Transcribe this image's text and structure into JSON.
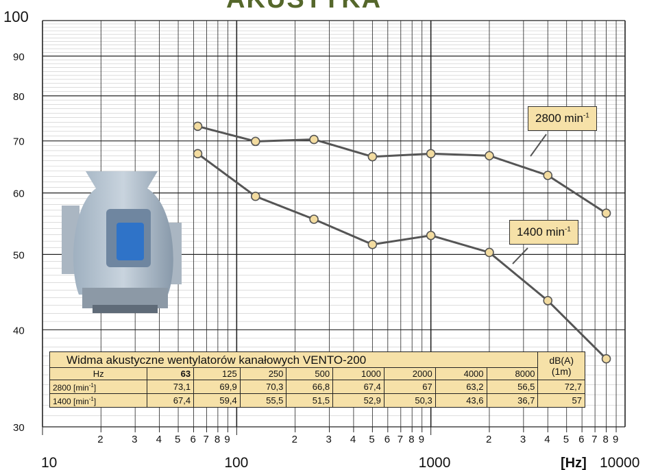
{
  "header": {
    "title": "AKUSTYKA"
  },
  "chart_data": {
    "type": "line",
    "x_scale": "log",
    "y_scale": "log",
    "xlim": [
      10,
      10000
    ],
    "ylim": [
      30,
      100
    ],
    "x_major_labels": [
      "10",
      "100",
      "1000",
      "10000"
    ],
    "x_minor_labels": [
      "2",
      "3",
      "4",
      "5",
      "6",
      "7",
      "8",
      "9"
    ],
    "x_unit_label": "[Hz]",
    "y_tick_labels": [
      "30",
      "40",
      "50",
      "60",
      "70",
      "80",
      "90",
      "100"
    ],
    "grid": true,
    "series": [
      {
        "name": "2800 min",
        "name_sup": "-1",
        "x": [
          63,
          125,
          250,
          500,
          1000,
          2000,
          4000,
          8000
        ],
        "y": [
          73.1,
          69.9,
          70.3,
          66.8,
          67.4,
          67,
          63.2,
          56.5
        ]
      },
      {
        "name": "1400 min",
        "name_sup": "-1",
        "x": [
          63,
          125,
          250,
          500,
          1000,
          2000,
          4000,
          8000
        ],
        "y": [
          67.4,
          59.4,
          55.5,
          51.5,
          52.9,
          50.3,
          43.6,
          36.7
        ]
      }
    ]
  },
  "table": {
    "title": "Widma akustyczne wentylatorów kanałowych VENTO-200",
    "dba_header": "dB(A)",
    "dba_sub": "(1m)",
    "hz_label": "Hz",
    "freqs": [
      "63",
      "125",
      "250",
      "500",
      "1000",
      "2000",
      "4000",
      "8000"
    ],
    "rows": [
      {
        "label": "2800 [min",
        "label_sup": "-1",
        "label_end": "]",
        "values": [
          "73,1",
          "69,9",
          "70,3",
          "66,8",
          "67,4",
          "67",
          "63,2",
          "56,5"
        ],
        "dba": "72,7"
      },
      {
        "label": "1400 [min",
        "label_sup": "-1",
        "label_end": "]",
        "values": [
          "67,4",
          "59,4",
          "55,5",
          "51,5",
          "52,9",
          "50,3",
          "43,6",
          "36,7"
        ],
        "dba": "57"
      }
    ]
  },
  "colors": {
    "line": "#555555",
    "marker_fill": "#f3dca0",
    "label_bg": "#f6e1a8",
    "title": "#55672b"
  }
}
